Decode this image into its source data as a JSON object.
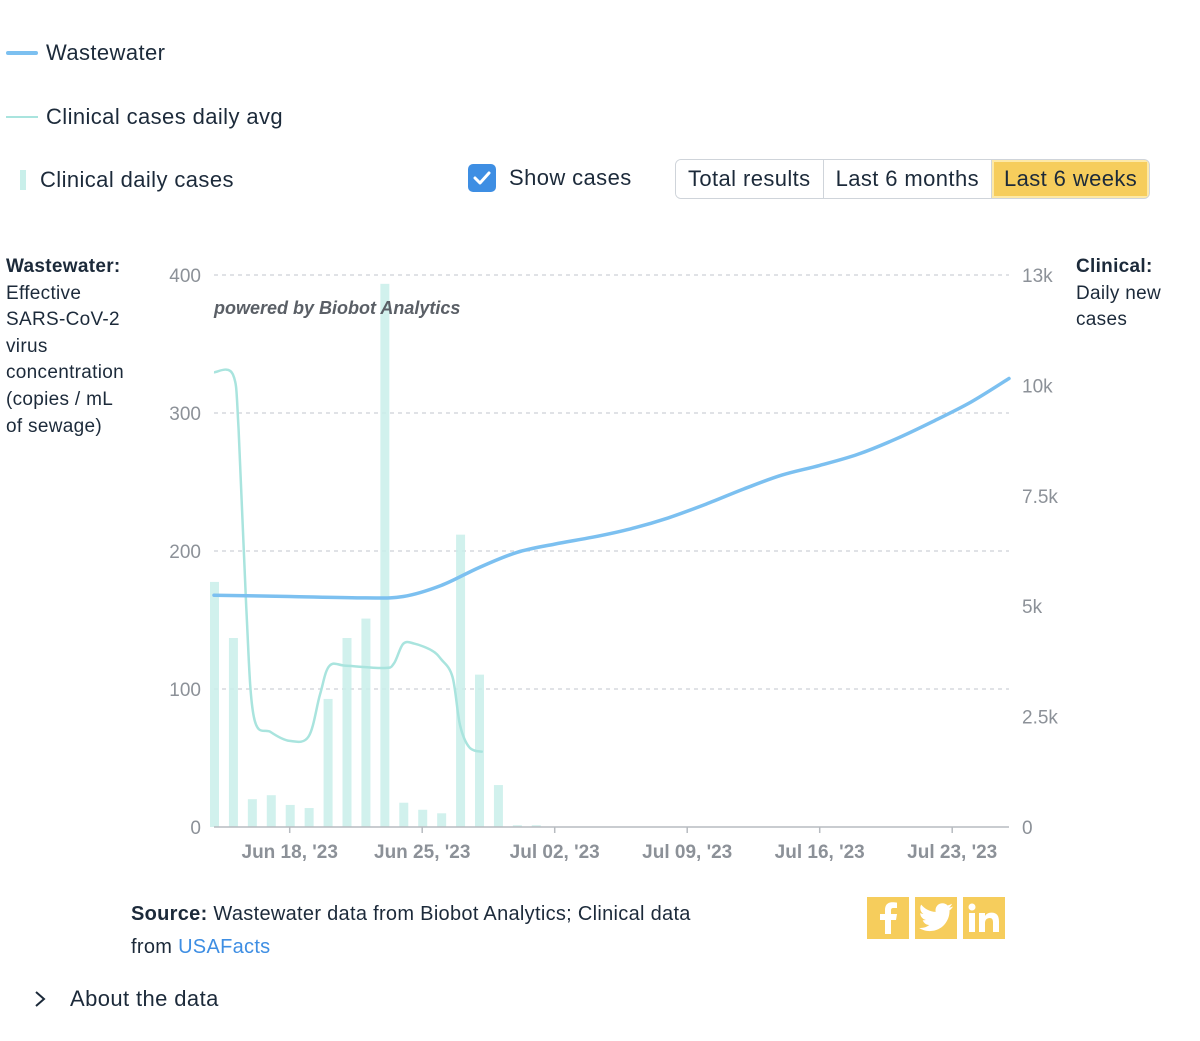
{
  "legend": {
    "wastewater": "Wastewater",
    "clinical_avg": "Clinical cases daily avg",
    "clinical_daily": "Clinical daily cases"
  },
  "colors": {
    "wastewater": "#7cc0f0",
    "clinical": "#a9e4de",
    "accent": "#f6cd5c",
    "checkbox": "#3e8ee3"
  },
  "controls": {
    "show_cases_label": "Show cases",
    "show_cases_checked": true,
    "ranges": [
      "Total results",
      "Last 6 months",
      "Last 6 weeks"
    ],
    "active_range": "Last 6 weeks"
  },
  "left_axis_title": {
    "bold": "Wastewater:",
    "lines": [
      "Effective",
      "SARS-CoV-2",
      "virus",
      "concentration",
      "(copies / mL",
      "of sewage)"
    ]
  },
  "right_axis_title": {
    "bold": "Clinical:",
    "lines": [
      "Daily new",
      "cases"
    ]
  },
  "watermark": "powered by Biobot Analytics",
  "chart_data": {
    "type": "line",
    "x_ticks": [
      "Jun 18, '23",
      "Jun 25, '23",
      "Jul 02, '23",
      "Jul 09, '23",
      "Jul 16, '23",
      "Jul 23, '23"
    ],
    "x_range_days": [
      0,
      42
    ],
    "tick_days": [
      4,
      11,
      18,
      25,
      32,
      39
    ],
    "y_left": {
      "ticks": [
        "0",
        "100",
        "200",
        "300",
        "400"
      ],
      "range": [
        0,
        400
      ]
    },
    "y_right": {
      "ticks": [
        "0",
        "2.5k",
        "5k",
        "7.5k",
        "10k",
        "13k"
      ],
      "tick_values": [
        0,
        2500,
        5000,
        7500,
        10000,
        12500
      ],
      "range": [
        0,
        12500
      ]
    },
    "grid": true,
    "series": [
      {
        "name": "Wastewater",
        "axis": "left",
        "day": [
          0,
          4,
          8,
          10,
          12,
          14,
          16,
          18,
          20,
          22,
          24,
          26,
          28,
          30,
          32,
          34,
          36,
          38,
          40,
          42
        ],
        "values": [
          168,
          167,
          166,
          167,
          175,
          188,
          199,
          205,
          210,
          216,
          224,
          234,
          245,
          255,
          262,
          270,
          281,
          294,
          308,
          325
        ]
      },
      {
        "name": "Clinical cases daily avg",
        "axis": "right",
        "day": [
          0,
          1,
          1.3,
          1.7,
          2.1,
          3,
          4,
          5,
          5.6,
          6.1,
          7,
          9,
          9.5,
          10,
          10.6,
          11.5,
          12,
          12.6,
          13,
          13.5,
          14.2
        ],
        "values": [
          10300,
          10250,
          9000,
          5000,
          2500,
          2150,
          1950,
          2050,
          3000,
          3650,
          3650,
          3600,
          3700,
          4150,
          4150,
          4000,
          3800,
          3400,
          2300,
          1800,
          1700
        ]
      },
      {
        "name": "Clinical daily cases",
        "axis": "right",
        "type": "bar",
        "day": [
          0,
          1,
          2,
          3,
          4,
          5,
          6,
          7,
          8,
          9,
          10,
          11,
          12,
          13,
          14,
          15,
          16,
          17
        ],
        "values": [
          5550,
          4280,
          630,
          720,
          500,
          430,
          2900,
          4280,
          4720,
          12300,
          550,
          390,
          310,
          6620,
          3450,
          950,
          40,
          40
        ]
      }
    ]
  },
  "source": {
    "label": "Source:",
    "text": " Wastewater data from Biobot Analytics; Clinical data from ",
    "link": "USAFacts"
  },
  "social": [
    "facebook",
    "twitter",
    "linkedin"
  ],
  "about_label": "About the data"
}
